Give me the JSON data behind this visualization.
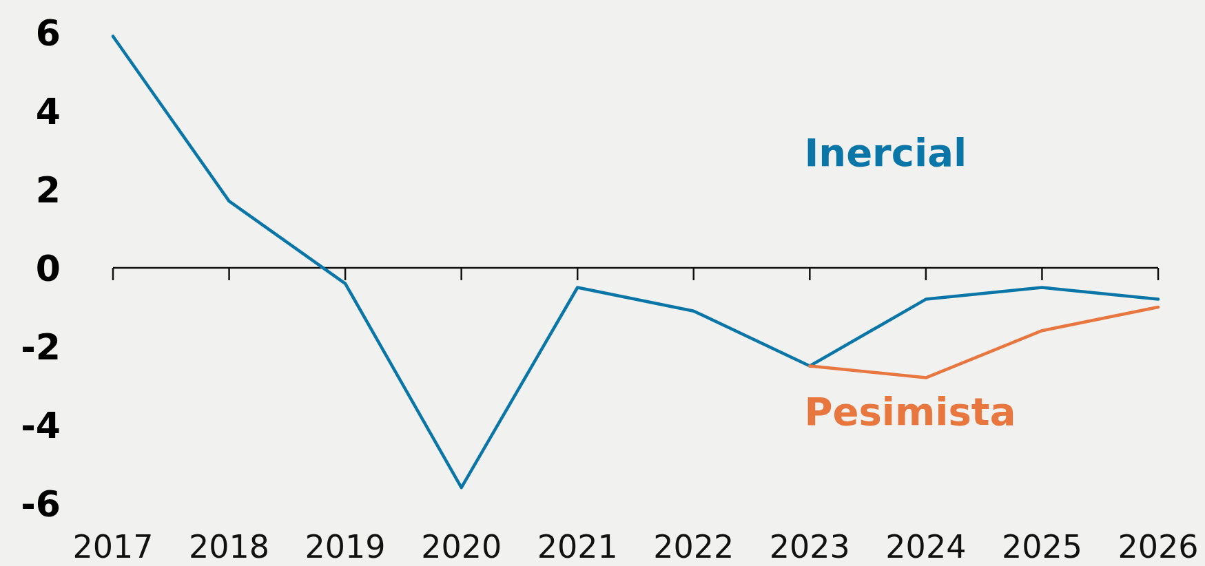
{
  "chart_data": {
    "type": "line",
    "categories": [
      "2017",
      "2018",
      "2019",
      "2020",
      "2021",
      "2022",
      "2023",
      "2024",
      "2025",
      "2026"
    ],
    "series": [
      {
        "name": "Inercial",
        "color": "#0a76a8",
        "values": [
          5.9,
          1.7,
          -0.4,
          -5.6,
          -0.5,
          -1.1,
          -2.5,
          -0.8,
          -0.5,
          -0.8
        ]
      },
      {
        "name": "Pesimista",
        "color": "#e8773f",
        "values": [
          null,
          null,
          null,
          null,
          null,
          null,
          -2.5,
          -2.8,
          -1.6,
          -1.0
        ]
      }
    ],
    "ylim": [
      -6,
      6
    ],
    "yticks": [
      -6,
      -4,
      -2,
      0,
      2,
      4,
      6
    ],
    "marker": "none",
    "line_style": "solid"
  }
}
